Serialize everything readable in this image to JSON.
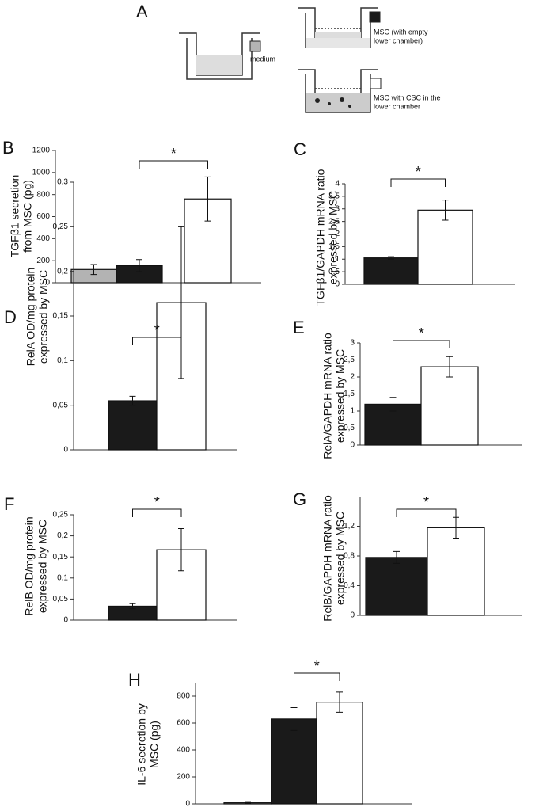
{
  "panel_a": {
    "label": "A",
    "items": [
      {
        "color": "#b3b3b3",
        "lines": [
          "medium"
        ]
      },
      {
        "color": "#1a1a1a",
        "lines": [
          "MSC (with empty",
          "lower chamber)"
        ]
      },
      {
        "color": "#ffffff",
        "lines": [
          "MSC with CSC in the",
          "lower chamber"
        ]
      }
    ]
  },
  "chart_data": [
    {
      "type": "bar",
      "panel": "B",
      "ylabel": [
        "TGFβ1 secretion",
        "from MSC (pg)"
      ],
      "annotation": "*",
      "categories": [
        null,
        null,
        null
      ],
      "values": [
        120,
        155,
        760
      ],
      "errors": [
        45,
        55,
        200
      ],
      "colors": [
        "#b3b3b3",
        "#1a1a1a",
        "#ffffff"
      ],
      "ylim": [
        0,
        1200
      ],
      "yticks": [
        0,
        200,
        400,
        600,
        800,
        1000,
        1200
      ]
    },
    {
      "type": "bar",
      "panel": "C",
      "ylabel": [
        "TGFβ1/GAPDH mRNA ratio",
        "expressed by MSC"
      ],
      "annotation": "*",
      "categories": [
        null,
        null
      ],
      "values": [
        1.05,
        2.95
      ],
      "errors": [
        0.05,
        0.4
      ],
      "colors": [
        "#1a1a1a",
        "#ffffff"
      ],
      "ylim": [
        0,
        4
      ],
      "yticks": [
        0,
        {
          "value": 0.5,
          "label": "0,5"
        },
        1,
        {
          "value": 1.5,
          "label": "1,5"
        },
        2,
        {
          "value": 2.5,
          "label": "2,5"
        },
        3,
        {
          "value": 3.5,
          "label": "3,5"
        },
        4
      ]
    },
    {
      "type": "bar",
      "panel": "D",
      "ylabel": [
        "RelA OD/mg protein",
        "expressed by MSC"
      ],
      "annotation": "*",
      "categories": [
        null,
        null
      ],
      "values": [
        0.055,
        0.165
      ],
      "errors": [
        0.005,
        0.085
      ],
      "colors": [
        "#1a1a1a",
        "#ffffff"
      ],
      "ylim": [
        0,
        0.3
      ],
      "yticks": [
        0,
        {
          "value": 0.05,
          "label": "0,05"
        },
        {
          "value": 0.1,
          "label": "0,1"
        },
        {
          "value": 0.15,
          "label": "0,15"
        },
        {
          "value": 0.2,
          "label": "0,2"
        },
        {
          "value": 0.25,
          "label": "0,25"
        },
        {
          "value": 0.3,
          "label": "0,3"
        }
      ]
    },
    {
      "type": "bar",
      "panel": "E",
      "ylabel": [
        "RelA/GAPDH mRNA ratio",
        "expressed by MSC"
      ],
      "annotation": "*",
      "categories": [
        null,
        null
      ],
      "values": [
        1.2,
        2.3
      ],
      "errors": [
        0.2,
        0.3
      ],
      "colors": [
        "#1a1a1a",
        "#ffffff"
      ],
      "ylim": [
        0,
        3
      ],
      "yticks": [
        0,
        {
          "value": 0.5,
          "label": "0,5"
        },
        1,
        {
          "value": 1.5,
          "label": "1,5"
        },
        2,
        {
          "value": 2.5,
          "label": "2,5"
        },
        3
      ]
    },
    {
      "type": "bar",
      "panel": "F",
      "ylabel": [
        "RelB OD/mg protein",
        "expressed by MSC"
      ],
      "annotation": "*",
      "categories": [
        null,
        null
      ],
      "values": [
        0.033,
        0.167
      ],
      "errors": [
        0.006,
        0.05
      ],
      "colors": [
        "#1a1a1a",
        "#ffffff"
      ],
      "ylim": [
        0,
        0.25
      ],
      "yticks": [
        0,
        {
          "value": 0.05,
          "label": "0,05"
        },
        {
          "value": 0.1,
          "label": "0,1"
        },
        {
          "value": 0.15,
          "label": "0,15"
        },
        {
          "value": 0.2,
          "label": "0,2"
        },
        {
          "value": 0.25,
          "label": "0,25"
        }
      ]
    },
    {
      "type": "bar",
      "panel": "G",
      "ylabel": [
        "RelB/GAPDH mRNA ratio",
        "expressed by MSC"
      ],
      "annotation": "*",
      "categories": [
        null,
        null
      ],
      "values": [
        0.78,
        1.18
      ],
      "errors": [
        0.08,
        0.14
      ],
      "colors": [
        "#1a1a1a",
        "#ffffff"
      ],
      "ylim": [
        0,
        1.6
      ],
      "yticks": [
        0,
        {
          "value": 0.4,
          "label": "0,4"
        },
        {
          "value": 0.8,
          "label": "0,8"
        },
        {
          "value": 1.2,
          "label": "1,2"
        }
      ]
    },
    {
      "type": "bar",
      "panel": "H",
      "ylabel": [
        "IL-6 secretion by",
        "MSC (pg)"
      ],
      "annotation": "*",
      "categories": [
        null,
        null,
        null
      ],
      "values": [
        8,
        630,
        755
      ],
      "errors": [
        3,
        85,
        75
      ],
      "colors": [
        "#b3b3b3",
        "#1a1a1a",
        "#ffffff"
      ],
      "ylim": [
        0,
        900
      ],
      "yticks": [
        0,
        200,
        400,
        600,
        800
      ]
    }
  ]
}
